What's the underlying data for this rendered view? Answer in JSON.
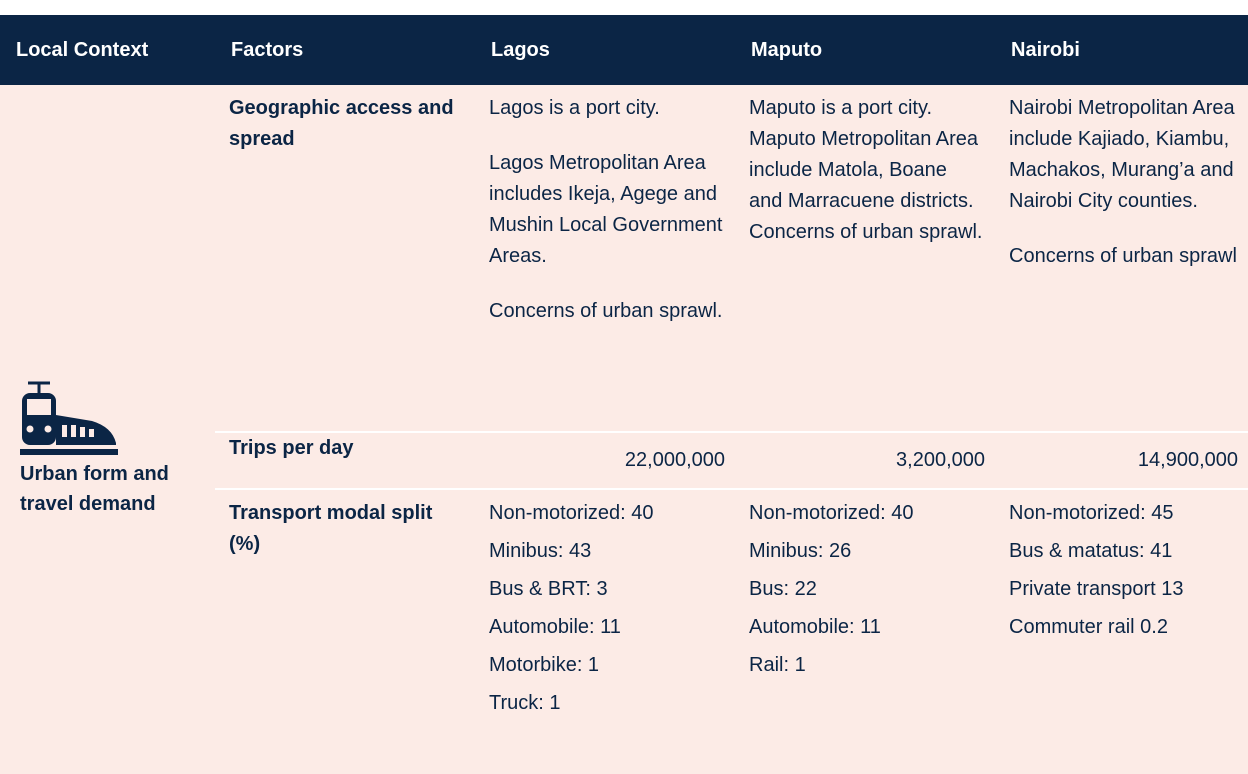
{
  "table": {
    "columns": [
      "Local Context",
      "Factors",
      "Lagos",
      "Maputo",
      "Nairobi"
    ],
    "context": "Urban form and travel demand",
    "rows": [
      {
        "factor": "Geographic access and spread",
        "cells": [
          [
            "Lagos is a port city.",
            "Lagos Metropolitan Area includes Ikeja, Agege and Mushin Local Government Areas.",
            "Concerns of urban sprawl."
          ],
          [
            "Maputo is a port city. Maputo Metropolitan Area include Matola, Boane and Marracuene districts. Concerns of urban sprawl."
          ],
          [
            "Nairobi Metropolitan Area include Kajiado, Kiambu, Machakos, Murang’a and Nairobi City counties.",
            "Concerns of urban sprawl"
          ]
        ]
      },
      {
        "factor": "Trips per day",
        "cells": [
          [
            "22,000,000"
          ],
          [
            "3,200,000"
          ],
          [
            "14,900,000"
          ]
        ]
      },
      {
        "factor": "Transport modal split (%)",
        "cells": [
          [
            "Non-motorized: 40",
            "Minibus: 43",
            "Bus & BRT: 3",
            "Automobile: 11",
            "Motorbike: 1",
            "Truck: 1"
          ],
          [
            "Non-motorized: 40",
            "Minibus: 26",
            "Bus: 22",
            "Automobile: 11",
            "Rail: 1"
          ],
          [
            "Non-motorized: 45",
            "Bus & matatus: 41",
            "Private transport 13",
            "Commuter rail 0.2"
          ]
        ]
      }
    ]
  }
}
